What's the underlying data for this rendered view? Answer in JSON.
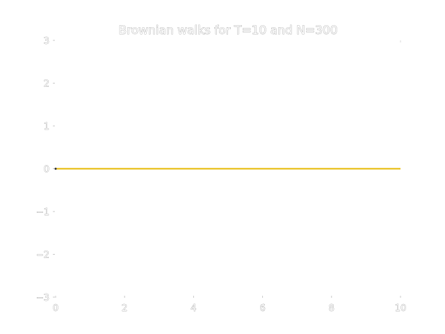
{
  "chart_data": {
    "type": "line",
    "title": "Brownian walks for T=10 and N=300",
    "xlabel": "",
    "ylabel": "",
    "xlim": [
      0,
      10
    ],
    "ylim": [
      -3,
      3
    ],
    "x_ticks": [
      0,
      2,
      4,
      6,
      8,
      10
    ],
    "x_tick_labels": [
      "0",
      "2",
      "4",
      "6",
      "8",
      "10"
    ],
    "y_ticks": [
      -3,
      -2,
      -1,
      0,
      1,
      2,
      3
    ],
    "y_tick_labels": [
      "−3",
      "−2",
      "−1",
      "0",
      "1",
      "2",
      "3"
    ],
    "grid": false,
    "series": [
      {
        "color": "#e6b800",
        "x": [
          0,
          10
        ],
        "y": [
          0,
          0
        ]
      }
    ]
  }
}
